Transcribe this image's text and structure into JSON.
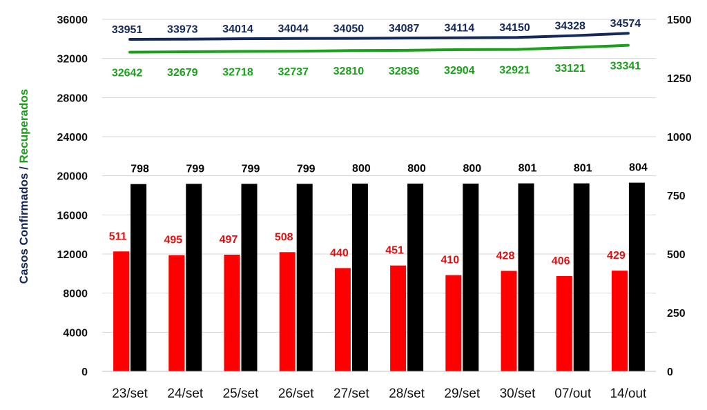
{
  "chart_data": {
    "type": "bar",
    "categories": [
      "23/set",
      "24/set",
      "25/set",
      "26/set",
      "27/set",
      "28/set",
      "29/set",
      "30/set",
      "07/out",
      "14/out"
    ],
    "left_axis": {
      "ylim": [
        0,
        36000
      ],
      "ticks": [
        0,
        4000,
        8000,
        12000,
        16000,
        20000,
        24000,
        28000,
        32000,
        36000
      ]
    },
    "right_axis": {
      "ylim": [
        0,
        1500
      ],
      "ticks": [
        0,
        250,
        500,
        750,
        1000,
        1250,
        1500
      ]
    },
    "ylabel": {
      "part1": "Casos Confirmados",
      "sep": " / ",
      "part2": "Recuperados"
    },
    "series": [
      {
        "type": "line",
        "axis": "left",
        "color": "#14285a",
        "label_color": "#14285a",
        "values": [
          33951,
          33973,
          34014,
          34044,
          34050,
          34087,
          34114,
          34150,
          34328,
          34574
        ]
      },
      {
        "type": "line",
        "axis": "left",
        "color": "#1aa01a",
        "label_color": "#1aa01a",
        "values": [
          32642,
          32679,
          32718,
          32737,
          32810,
          32836,
          32904,
          32921,
          33121,
          33341
        ]
      },
      {
        "type": "bar",
        "axis": "right",
        "color": "#ff0000",
        "label_color": "#e01010",
        "values": [
          511,
          495,
          497,
          508,
          440,
          451,
          410,
          428,
          406,
          429
        ]
      },
      {
        "type": "bar",
        "axis": "right",
        "color": "#000000",
        "label_color": "#000000",
        "values": [
          798,
          799,
          799,
          799,
          800,
          800,
          800,
          801,
          801,
          804
        ]
      }
    ],
    "grid": true,
    "legend": "none"
  }
}
